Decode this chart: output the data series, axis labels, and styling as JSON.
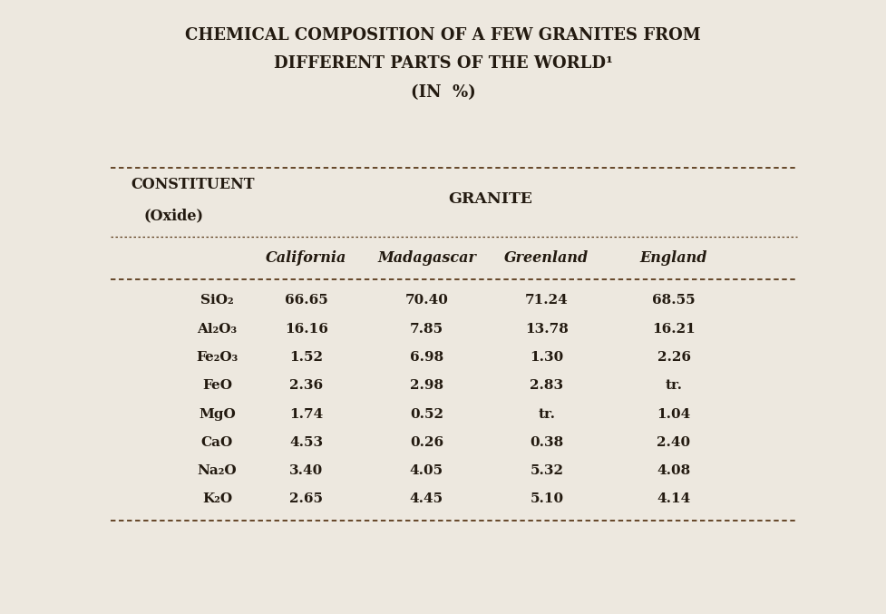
{
  "title_line1": "CHEMICAL COMPOSITION OF A FEW GRANITES FROM",
  "title_line2": "DIFFERENT PARTS OF THE WORLD¹",
  "title_line3": "(IN  %)",
  "col_header_group": "GRANITE",
  "sub_headers": [
    "California",
    "Madagascar",
    "Greenland",
    "England"
  ],
  "row_labels": [
    "SiO₂",
    "Al₂O₃",
    "Fe₂O₃",
    "FeO",
    "MgO",
    "CaO",
    "Na₂O",
    "K₂O"
  ],
  "data": [
    [
      "66.65",
      "70.40",
      "71.24",
      "68.55"
    ],
    [
      "16.16",
      "7.85",
      "13.78",
      "16.21"
    ],
    [
      "1.52",
      "6.98",
      "1.30",
      "2.26"
    ],
    [
      "2.36",
      "2.98",
      "2.83",
      "tr."
    ],
    [
      "1.74",
      "0.52",
      "tr.",
      "1.04"
    ],
    [
      "4.53",
      "0.26",
      "0.38",
      "2.40"
    ],
    [
      "3.40",
      "4.05",
      "5.32",
      "4.08"
    ],
    [
      "2.65",
      "4.45",
      "5.10",
      "4.14"
    ]
  ],
  "bg_color": "#ede8df",
  "text_color": "#231a10",
  "line_color": "#5a3a1a",
  "title_fontsize": 13,
  "header_fontsize": 11.5,
  "data_fontsize": 11,
  "figsize": [
    9.77,
    6.77
  ],
  "dpi": 100
}
